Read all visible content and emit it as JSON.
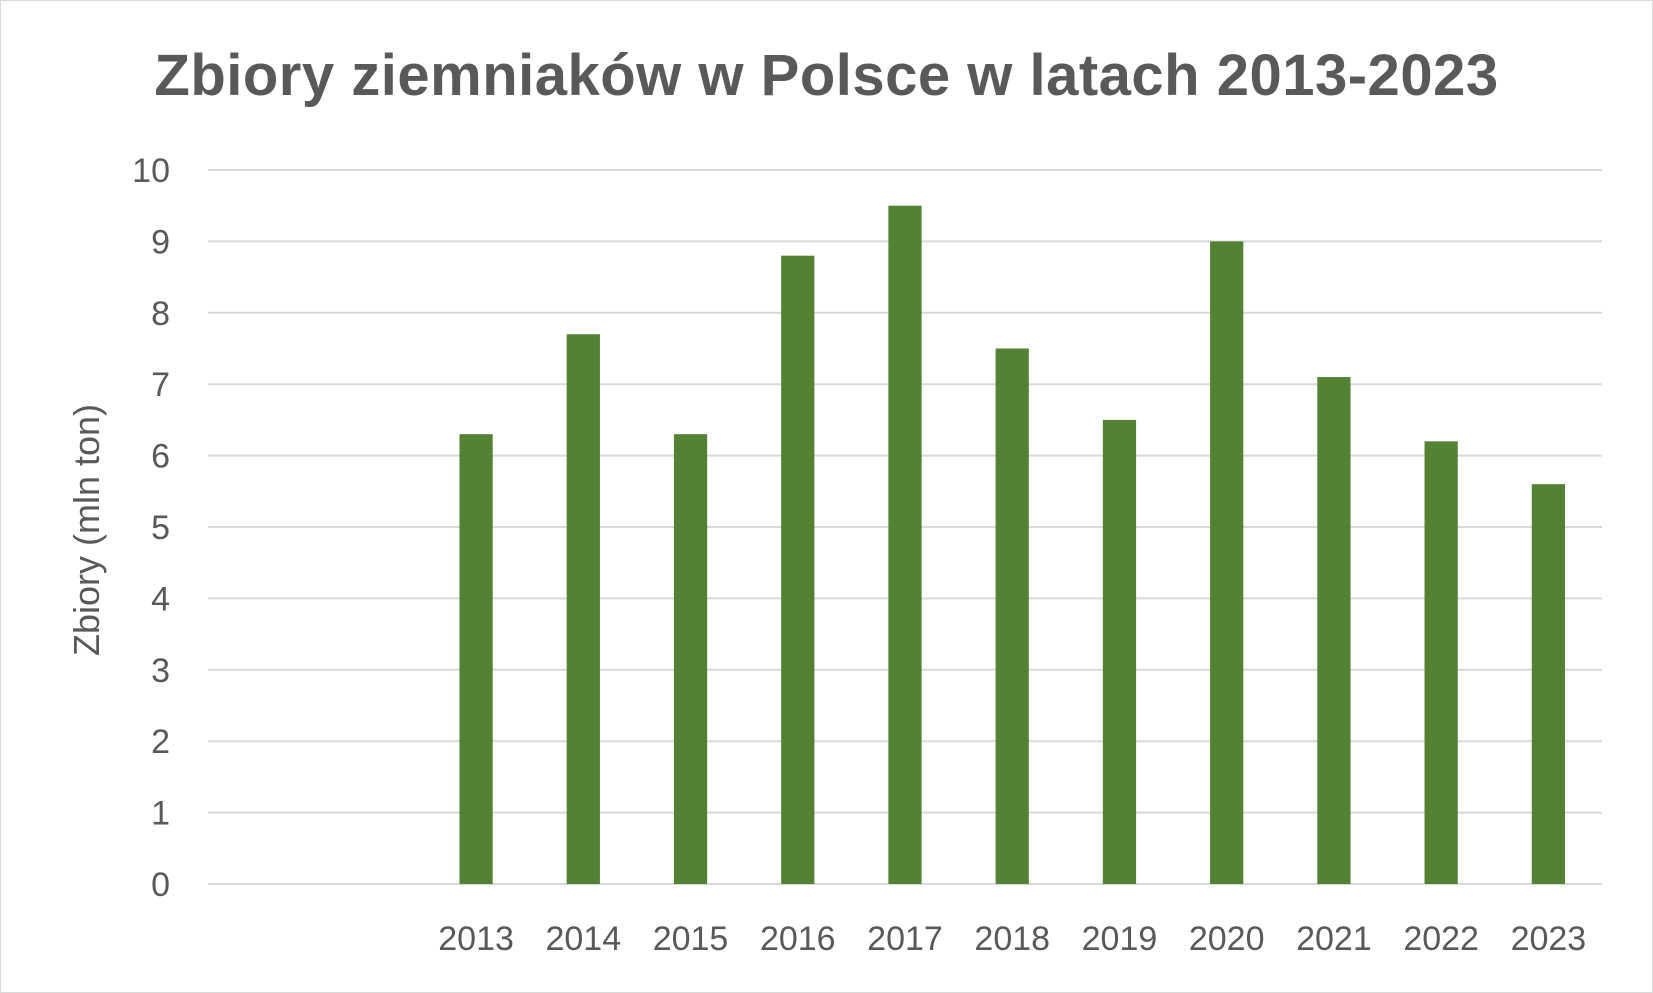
{
  "chart_data": {
    "type": "bar",
    "title": "Zbiory ziemniaków w Polsce w latach 2013-2023",
    "xlabel": "",
    "ylabel": "Zbiory (mln ton)",
    "categories": [
      "",
      "",
      "2013",
      "2014",
      "2015",
      "2016",
      "2017",
      "2018",
      "2019",
      "2020",
      "2021",
      "2022",
      "2023"
    ],
    "values": [
      null,
      null,
      6.3,
      7.7,
      6.3,
      8.8,
      9.5,
      7.5,
      6.5,
      9.0,
      7.1,
      6.2,
      5.6
    ],
    "ylim": [
      0,
      10
    ],
    "yticks": [
      "0",
      "1",
      "2",
      "3",
      "4",
      "5",
      "6",
      "7",
      "8",
      "9",
      "10"
    ],
    "grid": true,
    "legend": "none",
    "colors": {
      "bar": "#548235",
      "grid": "#d9d9d9",
      "text": "#595959"
    }
  }
}
